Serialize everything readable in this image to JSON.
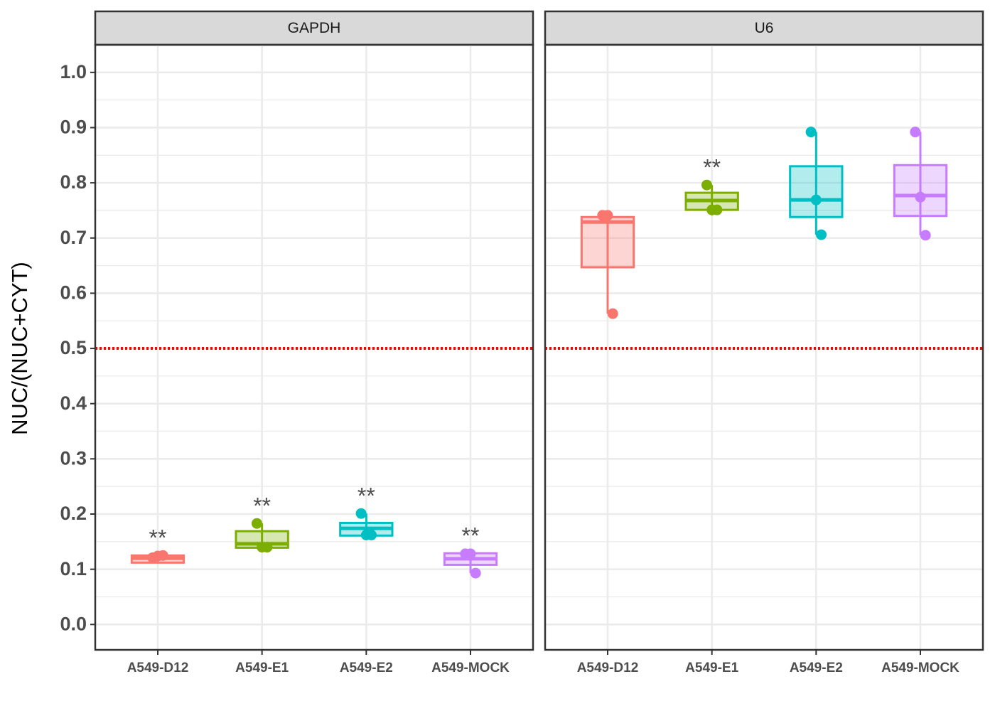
{
  "chart_data": [
    {
      "type": "box",
      "facet": "GAPDH",
      "ylabel": "NUC/(NUC+CYT)",
      "categories": [
        "A549-D12",
        "A549-E1",
        "A549-E2",
        "A549-MOCK"
      ],
      "colors": [
        "#F8766D",
        "#7CAE00",
        "#00BFC4",
        "#C77CFF"
      ],
      "boxes": [
        {
          "low": 0.112,
          "q1": 0.112,
          "median": 0.12,
          "q3": 0.125,
          "high": 0.125,
          "points": [
            0.121,
            0.124,
            0.125
          ]
        },
        {
          "low": 0.134,
          "q1": 0.139,
          "median": 0.146,
          "q3": 0.169,
          "high": 0.183,
          "points": [
            0.183,
            0.14,
            0.14
          ]
        },
        {
          "low": 0.161,
          "q1": 0.161,
          "median": 0.174,
          "q3": 0.184,
          "high": 0.201,
          "points": [
            0.201,
            0.162,
            0.162
          ]
        },
        {
          "low": 0.093,
          "q1": 0.108,
          "median": 0.119,
          "q3": 0.129,
          "high": 0.129,
          "points": [
            0.128,
            0.128,
            0.093
          ]
        }
      ],
      "annotations": [
        "**",
        "**",
        "**",
        "**"
      ],
      "hline": 0.5,
      "hline_color": "#ff0000",
      "ylim": [
        -0.046,
        1.05
      ],
      "yticks": [
        {
          "value": 0,
          "label": "0.0"
        },
        0.1,
        0.2,
        0.3,
        0.4,
        0.5,
        0.6,
        0.7,
        0.8,
        0.9,
        {
          "value": 1,
          "label": "1.0"
        }
      ],
      "grid": true
    },
    {
      "type": "box",
      "facet": "U6",
      "categories": [
        "A549-D12",
        "A549-E1",
        "A549-E2",
        "A549-MOCK"
      ],
      "colors": [
        "#F8766D",
        "#7CAE00",
        "#00BFC4",
        "#C77CFF"
      ],
      "boxes": [
        {
          "low": 0.563,
          "q1": 0.647,
          "median": 0.729,
          "q3": 0.738,
          "high": 0.741,
          "points": [
            0.741,
            0.741,
            0.563
          ]
        },
        {
          "low": 0.741,
          "q1": 0.751,
          "median": 0.768,
          "q3": 0.782,
          "high": 0.796,
          "points": [
            0.796,
            0.751,
            0.751
          ]
        },
        {
          "low": 0.706,
          "q1": 0.738,
          "median": 0.769,
          "q3": 0.83,
          "high": 0.892,
          "points": [
            0.892,
            0.769,
            0.706
          ]
        },
        {
          "low": 0.705,
          "q1": 0.74,
          "median": 0.777,
          "q3": 0.832,
          "high": 0.892,
          "points": [
            0.892,
            0.774,
            0.705
          ]
        }
      ],
      "annotations": [
        null,
        "**",
        null,
        null
      ],
      "hline": 0.5,
      "hline_color": "#ff0000",
      "ylim": [
        -0.046,
        1.05
      ],
      "yticks": [
        {
          "value": 0,
          "label": "0.0"
        },
        0.1,
        0.2,
        0.3,
        0.4,
        0.5,
        0.6,
        0.7,
        0.8,
        0.9,
        {
          "value": 1,
          "label": "1.0"
        }
      ],
      "grid": true
    }
  ]
}
